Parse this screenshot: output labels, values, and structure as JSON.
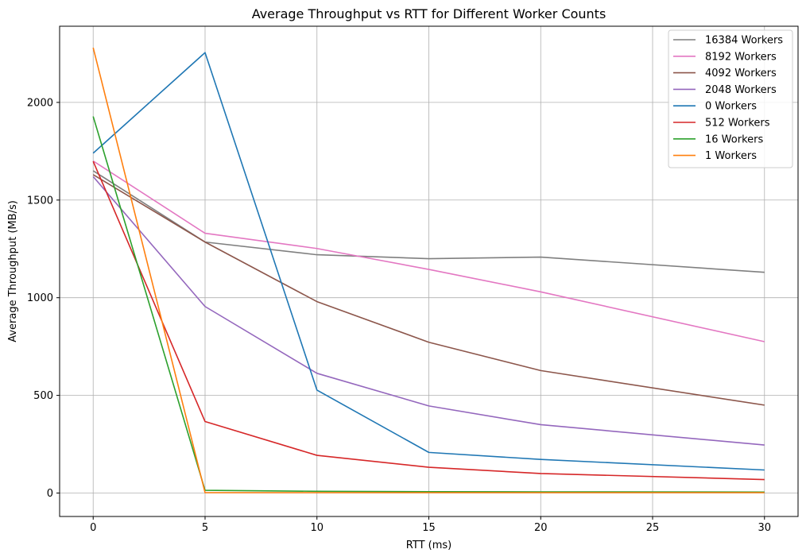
{
  "chart_data": {
    "type": "line",
    "title": "Average Throughput vs RTT for Different Worker Counts",
    "xlabel": "RTT (ms)",
    "ylabel": "Average Throughput (MB/s)",
    "xlim": [
      -1.5,
      31.5
    ],
    "ylim": [
      -120,
      2390
    ],
    "xticks": [
      0,
      5,
      10,
      15,
      20,
      25,
      30
    ],
    "yticks": [
      0,
      500,
      1000,
      1500,
      2000
    ],
    "grid": true,
    "legend_position": "top-right",
    "x": [
      0,
      5,
      10,
      15,
      20,
      30
    ],
    "series": [
      {
        "name": "16384 Workers",
        "color": "#7f7f7f",
        "values": [
          1650,
          1285,
          1220,
          1200,
          1208,
          1130
        ]
      },
      {
        "name": "8192 Workers",
        "color": "#e377c2",
        "values": [
          1700,
          1330,
          1252,
          1145,
          1030,
          775
        ]
      },
      {
        "name": "4092 Workers",
        "color": "#8c564b",
        "values": [
          1630,
          1285,
          980,
          772,
          627,
          450
        ]
      },
      {
        "name": "2048 Workers",
        "color": "#9467bd",
        "values": [
          1620,
          955,
          613,
          446,
          350,
          246
        ]
      },
      {
        "name": "0 Workers",
        "color": "#1f77b4",
        "values": [
          1740,
          2255,
          527,
          208,
          172,
          118
        ]
      },
      {
        "name": "512 Workers",
        "color": "#d62728",
        "values": [
          1698,
          366,
          193,
          132,
          100,
          69
        ]
      },
      {
        "name": "16 Workers",
        "color": "#2ca02c",
        "values": [
          1928,
          14,
          9,
          7,
          6,
          5
        ]
      },
      {
        "name": "1 Workers",
        "color": "#ff7f0e",
        "values": [
          2280,
          2,
          2,
          2,
          2,
          2
        ]
      }
    ]
  }
}
